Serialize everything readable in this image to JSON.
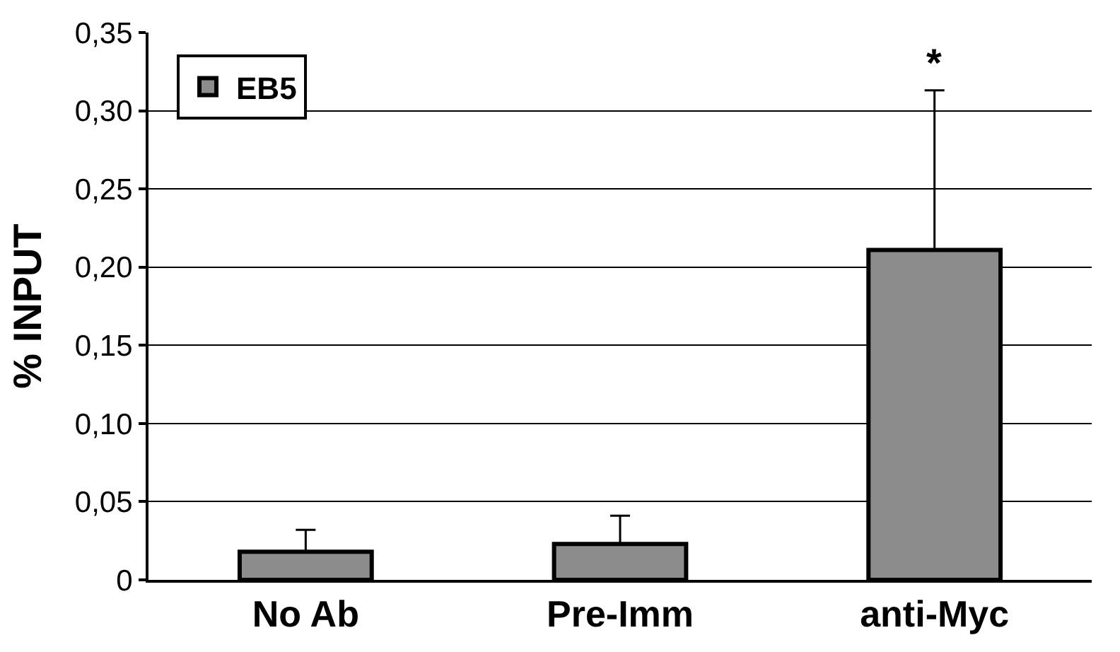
{
  "chart_data": {
    "type": "bar",
    "ylabel": "% INPUT",
    "categories": [
      "No Ab",
      "Pre-Imm",
      "anti-Myc"
    ],
    "series": [
      {
        "name": "EB5",
        "color": "#8c8c8c",
        "values": [
          0.018,
          0.023,
          0.211
        ],
        "errors": [
          0.014,
          0.018,
          0.102
        ]
      }
    ],
    "ylim": [
      0,
      0.35
    ],
    "yticks": [
      0,
      {
        "value": 0.05,
        "label": "0,05"
      },
      {
        "value": 0.1,
        "label": "0,10"
      },
      {
        "value": 0.15,
        "label": "0,15"
      },
      {
        "value": 0.2,
        "label": "0,20"
      },
      {
        "value": 0.25,
        "label": "0,25"
      },
      {
        "value": 0.3,
        "label": "0,30"
      },
      {
        "value": 0.35,
        "label": "0,35"
      }
    ],
    "grid": "y",
    "legend": "top left",
    "annotations": [
      "*"
    ]
  }
}
